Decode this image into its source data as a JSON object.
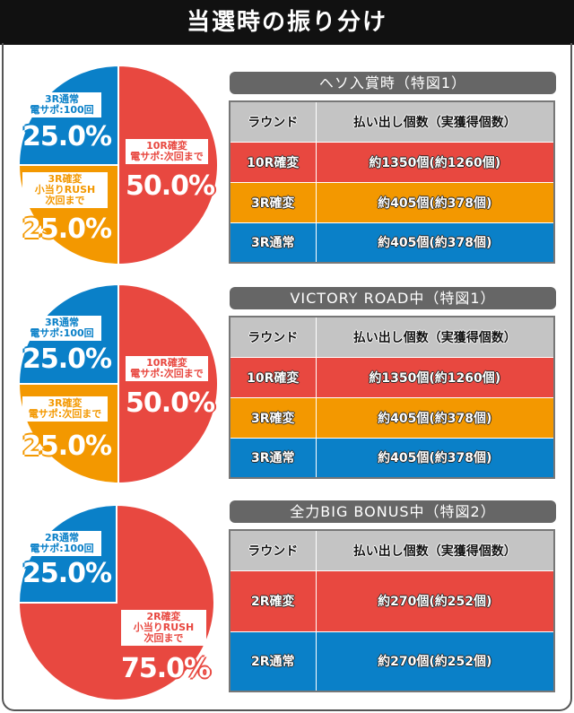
{
  "title": "当選時の振り分け",
  "colors": {
    "red": "#e84840",
    "orange": "#f39800",
    "blue": "#0a80c8"
  },
  "table_header": {
    "round": "ラウンド",
    "payout": "払い出し個数（実獲得個数）"
  },
  "sections": [
    {
      "heading": "ヘソ入賞時（特図1）",
      "pie": [
        {
          "label": "10R確変\n電サポ:次回まで",
          "percent": "50.0%",
          "value": 50,
          "color": "red"
        },
        {
          "label": "3R確変\n小当りRUSH\n次回まで",
          "percent": "25.0%",
          "value": 25,
          "color": "orange"
        },
        {
          "label": "3R通常\n電サポ:100回",
          "percent": "25.0%",
          "value": 25,
          "color": "blue"
        }
      ],
      "rows": [
        {
          "round": "10R確変",
          "payout": "約1350個(約1260個)",
          "color": "red"
        },
        {
          "round": "3R確変",
          "payout": "約405個(約378個)",
          "color": "orange"
        },
        {
          "round": "3R通常",
          "payout": "約405個(約378個)",
          "color": "blue"
        }
      ]
    },
    {
      "heading": "VICTORY ROAD中（特図1）",
      "pie": [
        {
          "label": "10R確変\n電サポ:次回まで",
          "percent": "50.0%",
          "value": 50,
          "color": "red"
        },
        {
          "label": "3R確変\n電サポ:次回まで",
          "percent": "25.0%",
          "value": 25,
          "color": "orange"
        },
        {
          "label": "3R通常\n電サポ:100回",
          "percent": "25.0%",
          "value": 25,
          "color": "blue"
        }
      ],
      "rows": [
        {
          "round": "10R確変",
          "payout": "約1350個(約1260個)",
          "color": "red"
        },
        {
          "round": "3R確変",
          "payout": "約405個(約378個)",
          "color": "orange"
        },
        {
          "round": "3R通常",
          "payout": "約405個(約378個)",
          "color": "blue"
        }
      ]
    },
    {
      "heading": "全力BIG BONUS中（特図2）",
      "pie": [
        {
          "label": "2R確変\n小当りRUSH\n次回まで",
          "percent": "75.0%",
          "value": 75,
          "color": "red"
        },
        {
          "label": "2R通常\n電サポ:100回",
          "percent": "25.0%",
          "value": 25,
          "color": "blue"
        }
      ],
      "rows": [
        {
          "round": "2R確変",
          "payout": "約270個(約252個)",
          "color": "red"
        },
        {
          "round": "2R通常",
          "payout": "約270個(約252個)",
          "color": "blue"
        }
      ]
    }
  ]
}
